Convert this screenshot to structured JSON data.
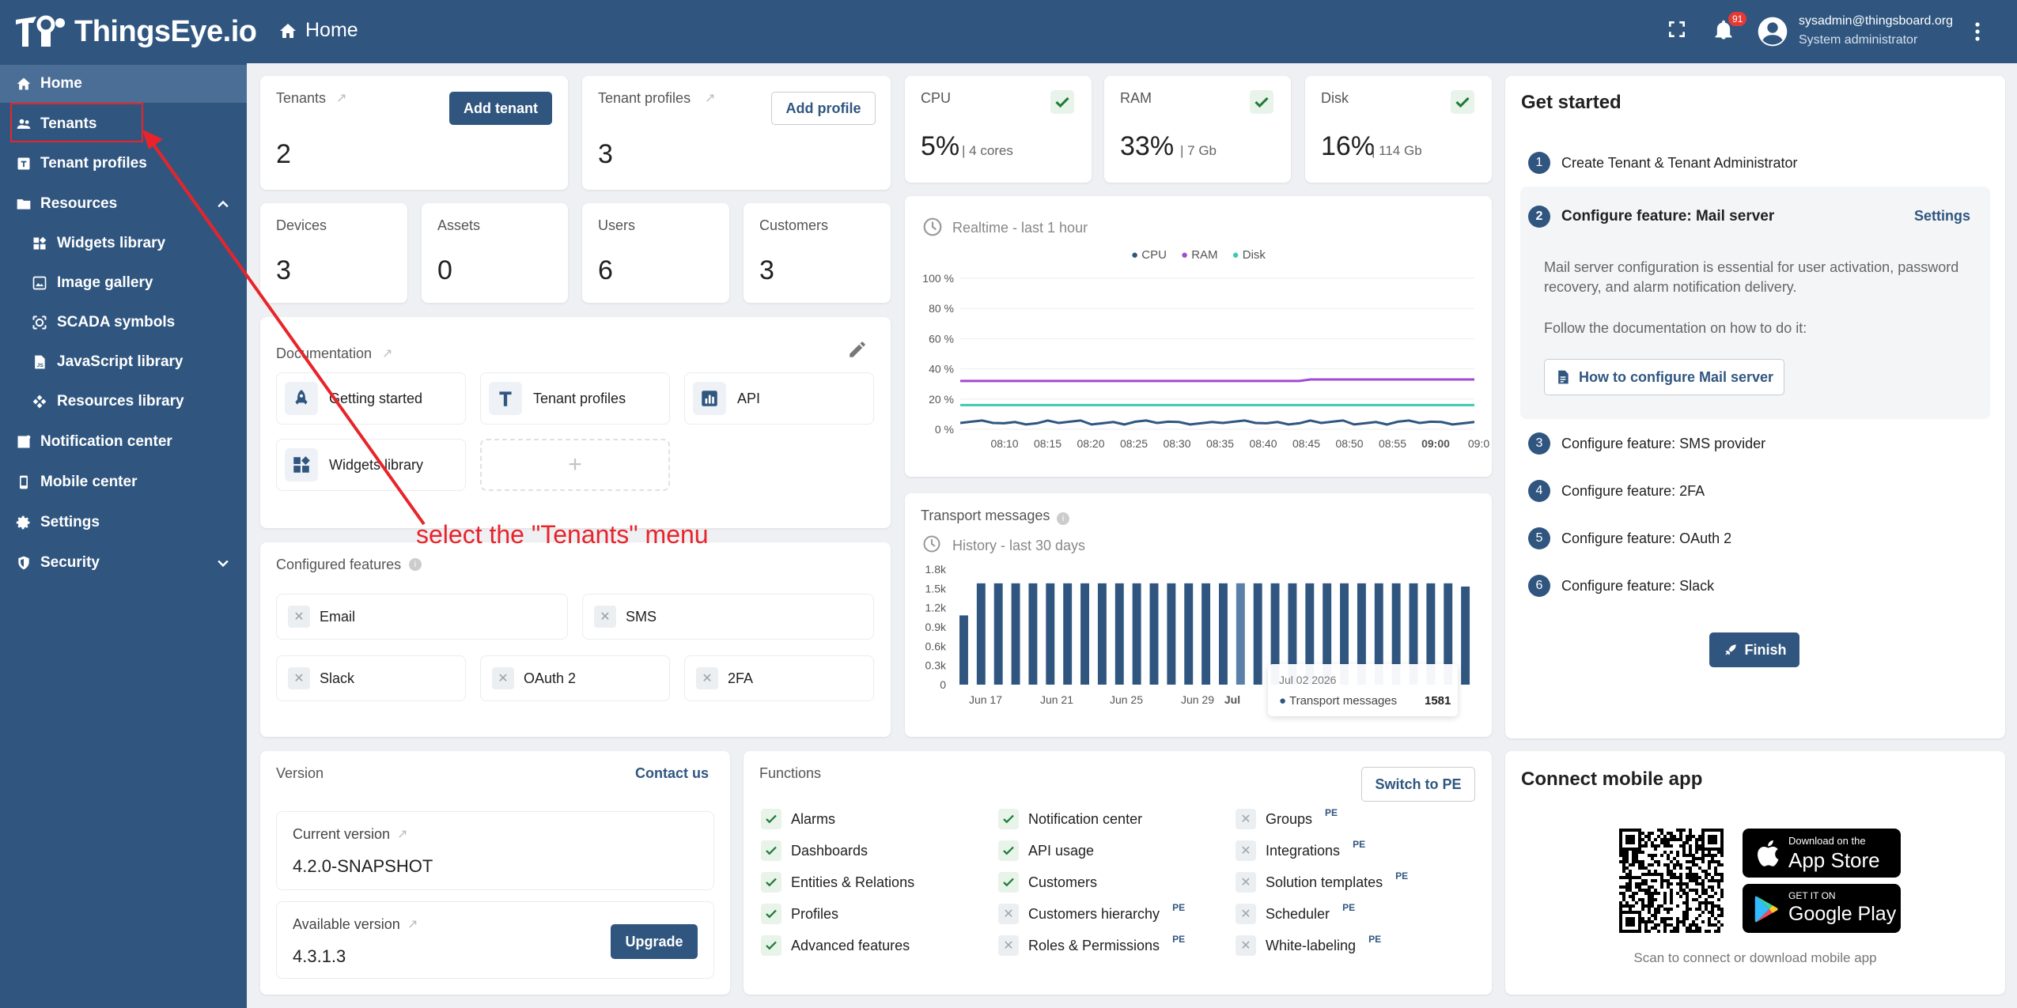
{
  "header": {
    "brand": "ThingsEye.io",
    "page_title": "Home",
    "notification_count": "91",
    "user_email": "sysadmin@thingsboard.org",
    "user_role": "System administrator"
  },
  "sidebar": {
    "items": [
      {
        "label": "Home",
        "icon": "home-icon",
        "active": true
      },
      {
        "label": "Tenants",
        "icon": "tenants-icon"
      },
      {
        "label": "Tenant profiles",
        "icon": "tenant-profiles-icon"
      },
      {
        "label": "Resources",
        "icon": "folder-icon"
      },
      {
        "label": "Widgets library",
        "icon": "widgets-icon"
      },
      {
        "label": "Image gallery",
        "icon": "image-icon"
      },
      {
        "label": "SCADA symbols",
        "icon": "scada-icon"
      },
      {
        "label": "JavaScript library",
        "icon": "js-icon"
      },
      {
        "label": "Resources library",
        "icon": "resources-icon"
      },
      {
        "label": "Notification center",
        "icon": "notification-icon"
      },
      {
        "label": "Mobile center",
        "icon": "mobile-icon"
      },
      {
        "label": "Settings",
        "icon": "gear-icon"
      },
      {
        "label": "Security",
        "icon": "shield-icon"
      }
    ]
  },
  "stats": {
    "tenants": {
      "label": "Tenants",
      "value": "2",
      "button": "Add tenant"
    },
    "tenant_profiles": {
      "label": "Tenant profiles",
      "value": "3",
      "button": "Add profile"
    },
    "devices": {
      "label": "Devices",
      "value": "3"
    },
    "assets": {
      "label": "Assets",
      "value": "0"
    },
    "users": {
      "label": "Users",
      "value": "6"
    },
    "customers": {
      "label": "Customers",
      "value": "3"
    }
  },
  "resources": {
    "cpu": {
      "label": "CPU",
      "value": "5%",
      "detail": "| 4 cores"
    },
    "ram": {
      "label": "RAM",
      "value": "33%",
      "detail": "| 7 Gb"
    },
    "disk": {
      "label": "Disk",
      "value": "16%",
      "detail": "| 114 Gb"
    }
  },
  "documentation": {
    "title": "Documentation",
    "items": [
      "Getting started",
      "Tenant profiles",
      "API",
      "Widgets library"
    ]
  },
  "features": {
    "title": "Configured features",
    "items": [
      "Email",
      "SMS",
      "Slack",
      "OAuth 2",
      "2FA"
    ]
  },
  "realtime_chart": {
    "subtitle": "Realtime - last 1 hour",
    "legend": [
      "CPU",
      "RAM",
      "Disk"
    ],
    "colors": [
      "#305680",
      "#a24ad1",
      "#3fc9b0"
    ]
  },
  "transport_chart": {
    "title": "Transport messages",
    "subtitle": "History - last 30 days",
    "tooltip": {
      "date": "Jul 02 2026",
      "series": "Transport messages",
      "value": "1581"
    }
  },
  "chart_data": [
    {
      "type": "line",
      "title": "",
      "subtitle": "Realtime - last 1 hour",
      "x": [
        "08:10",
        "08:15",
        "08:20",
        "08:25",
        "08:30",
        "08:35",
        "08:40",
        "08:45",
        "08:50",
        "08:55",
        "09:00",
        "09:0"
      ],
      "yticks": [
        "100 %",
        "80 %",
        "60 %",
        "40 %",
        "20 %",
        "0 %"
      ],
      "ylim": [
        0,
        100
      ],
      "series": [
        {
          "name": "CPU",
          "values": [
            5,
            4,
            5,
            4,
            5,
            4,
            5,
            4,
            5,
            4,
            5,
            4
          ]
        },
        {
          "name": "RAM",
          "values": [
            32,
            32,
            32,
            32,
            32,
            32,
            32,
            32,
            33,
            33,
            33,
            33
          ]
        },
        {
          "name": "Disk",
          "values": [
            16,
            16,
            16,
            16,
            16,
            16,
            16,
            16,
            16,
            16,
            16,
            16
          ]
        }
      ]
    },
    {
      "type": "bar",
      "title": "Transport messages",
      "subtitle": "History - last 30 days",
      "x_labels": [
        "Jun 17",
        "Jun 21",
        "Jun 25",
        "Jun 29",
        "Jul"
      ],
      "yticks": [
        "1.8k",
        "1.5k",
        "1.2k",
        "0.9k",
        "0.6k",
        "0.3k",
        "0"
      ],
      "ylim": [
        0,
        1800
      ],
      "values": [
        1080,
        1580,
        1580,
        1580,
        1580,
        1580,
        1580,
        1580,
        1580,
        1580,
        1580,
        1580,
        1580,
        1580,
        1580,
        1580,
        1581,
        1580,
        1580,
        1580,
        1580,
        1580,
        1580,
        1580,
        1580,
        1580,
        1580,
        1580,
        1580,
        1530
      ]
    }
  ],
  "get_started": {
    "title": "Get started",
    "steps": [
      {
        "num": "1",
        "label": "Create Tenant & Tenant Administrator"
      },
      {
        "num": "2",
        "label": "Configure feature: Mail server"
      },
      {
        "num": "3",
        "label": "Configure feature: SMS provider"
      },
      {
        "num": "4",
        "label": "Configure feature: 2FA"
      },
      {
        "num": "5",
        "label": "Configure feature: OAuth 2"
      },
      {
        "num": "6",
        "label": "Configure feature: Slack"
      }
    ],
    "settings_link": "Settings",
    "desc": "Mail server configuration is essential for user activation, password recovery, and alarm notification delivery.",
    "follow": "Follow the documentation on how to do it:",
    "doc_button": "How to configure Mail server",
    "finish": "Finish"
  },
  "version": {
    "title": "Version",
    "contact": "Contact us",
    "current_label": "Current version",
    "current": "4.2.0-SNAPSHOT",
    "available_label": "Available version",
    "available": "4.3.1.3",
    "upgrade": "Upgrade"
  },
  "functions": {
    "title": "Functions",
    "switch": "Switch to PE",
    "pe": "PE",
    "col1": [
      "Alarms",
      "Dashboards",
      "Entities & Relations",
      "Profiles",
      "Advanced features"
    ],
    "col2": [
      "Notification center",
      "API usage",
      "Customers",
      "Customers hierarchy",
      "Roles & Permissions"
    ],
    "col3": [
      "Groups",
      "Integrations",
      "Solution templates",
      "Scheduler",
      "White-labeling"
    ]
  },
  "mobile": {
    "title": "Connect mobile app",
    "appstore_small": "Download on the",
    "appstore": "App Store",
    "gplay_small": "GET IT ON",
    "gplay": "Google Play",
    "caption": "Scan to connect or download mobile app"
  },
  "annotation": "select the \"Tenants\" menu"
}
